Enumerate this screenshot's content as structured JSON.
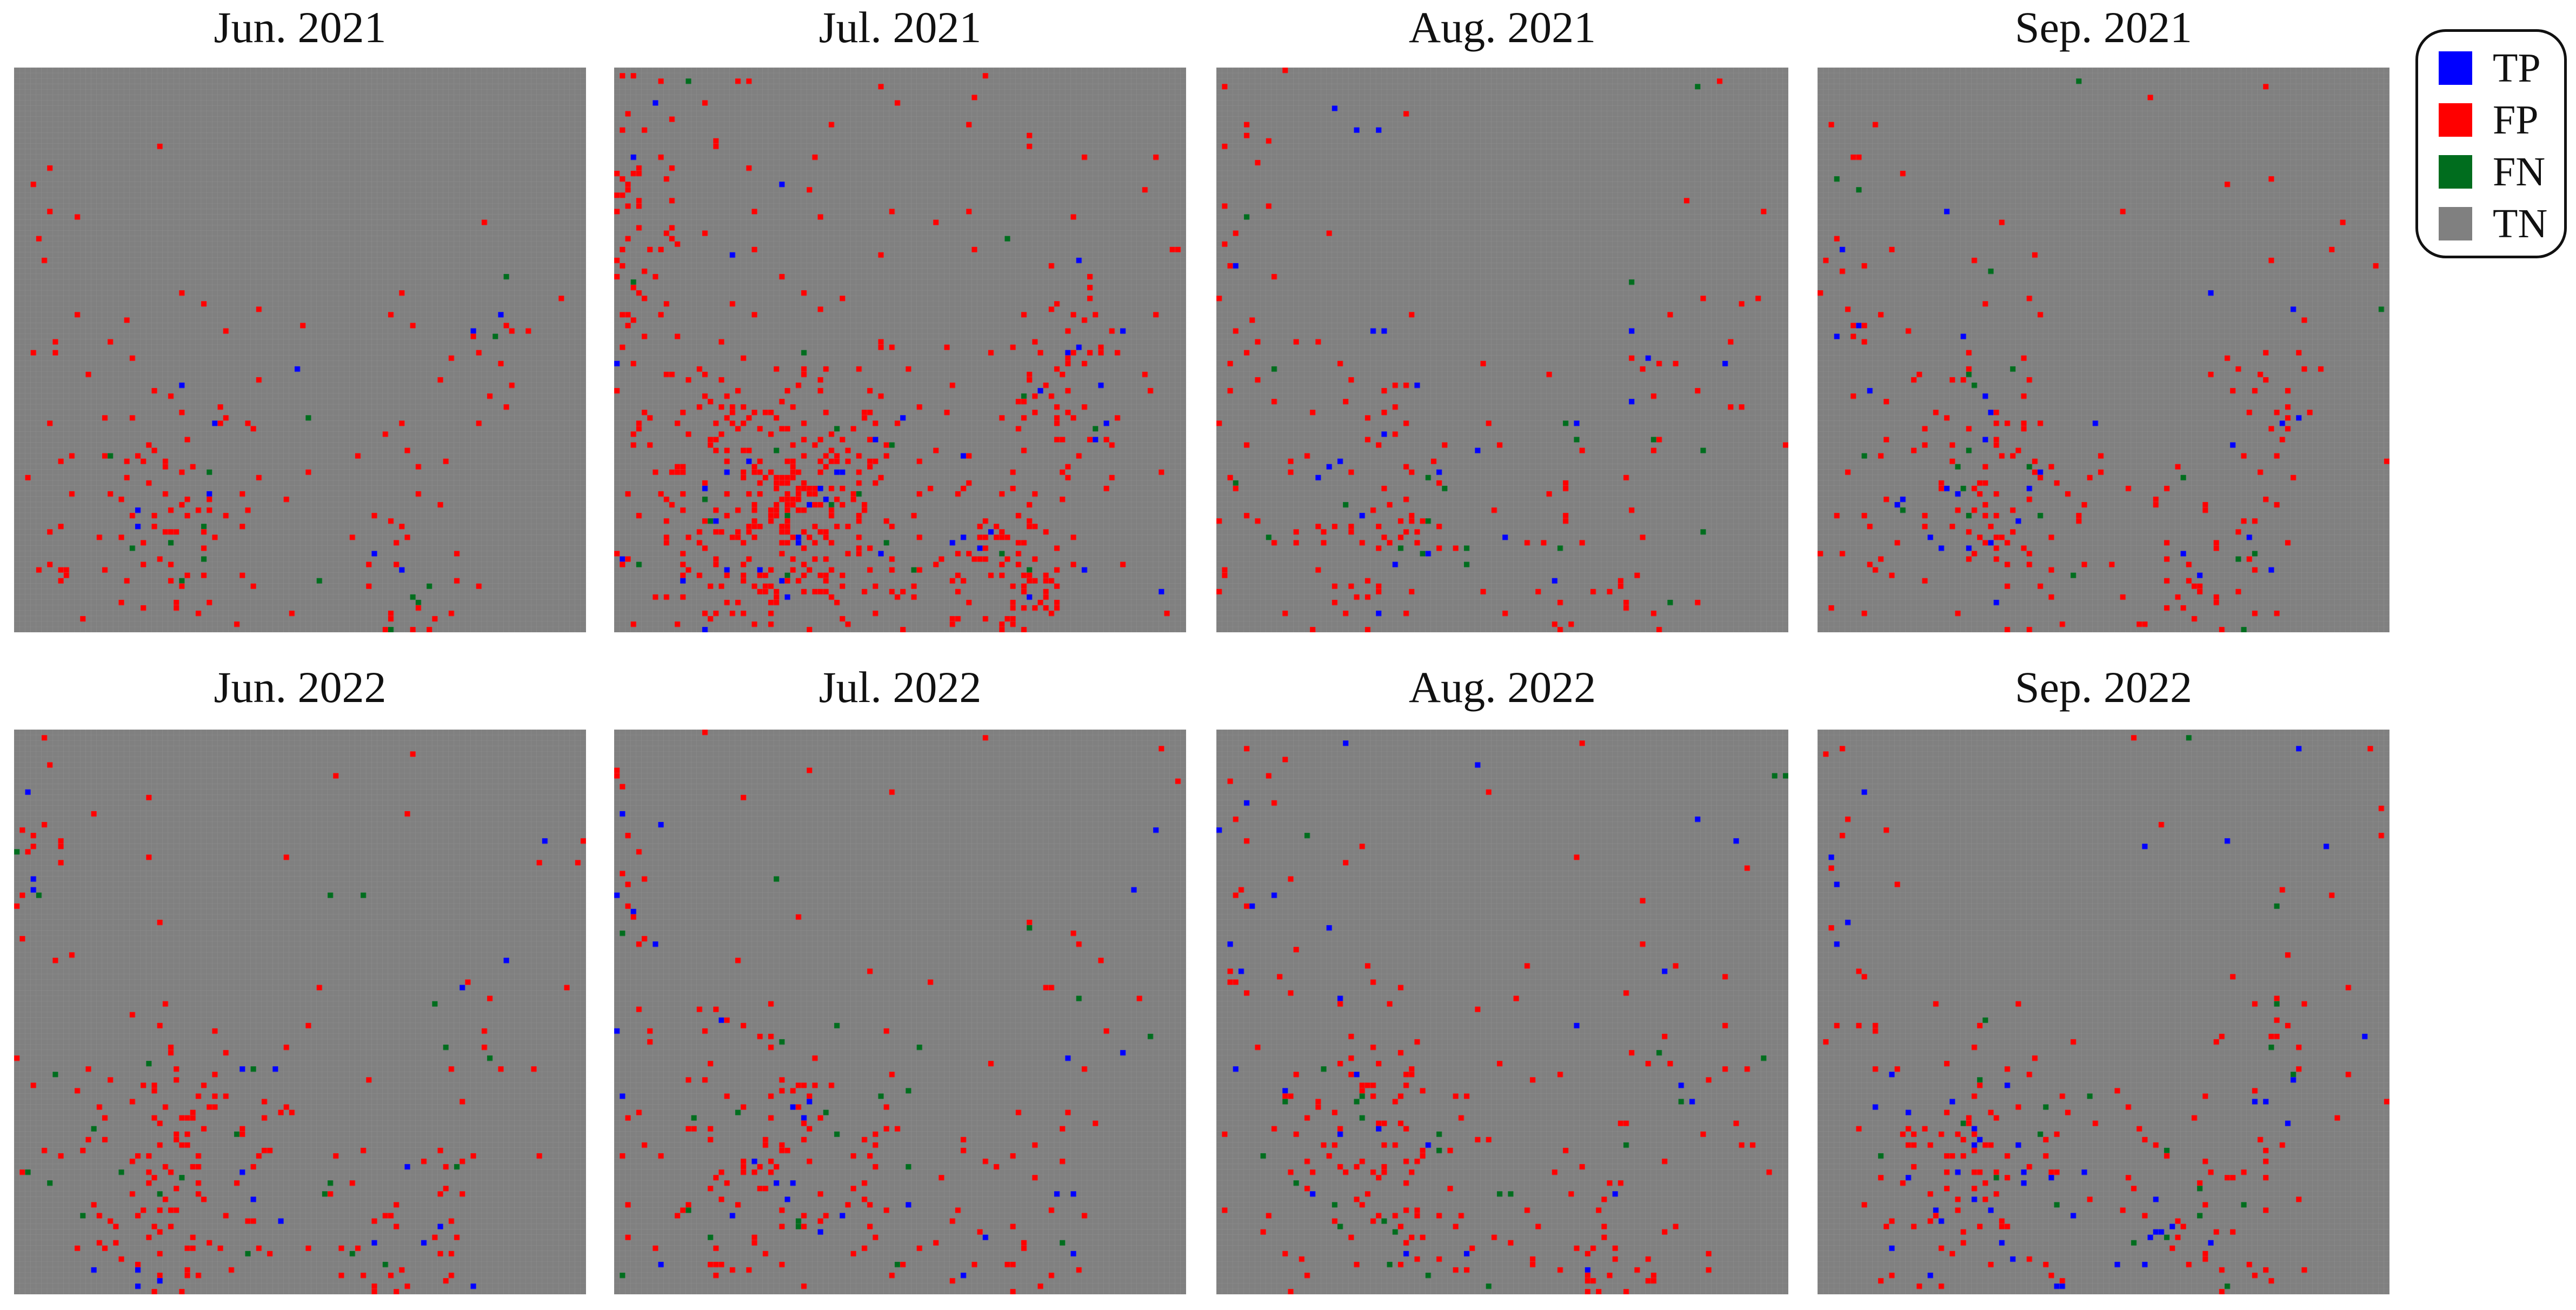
{
  "chart_data": {
    "type": "heatmap",
    "grid": "on",
    "legend_position": "top-right",
    "categories": [
      "TP",
      "FP",
      "FN",
      "TN"
    ],
    "colors": {
      "TP": "#0000ff",
      "FP": "#ff0000",
      "FN": "#006d1e",
      "TN": "#808080"
    },
    "panels": [
      {
        "title": "Jun. 2021",
        "fp_density": 0.045,
        "tp_density": 0.004,
        "fn_density": 0.004
      },
      {
        "title": "Jul. 2021",
        "fp_density": 0.16,
        "tp_density": 0.01,
        "fn_density": 0.007
      },
      {
        "title": "Aug. 2021",
        "fp_density": 0.05,
        "tp_density": 0.007,
        "fn_density": 0.006
      },
      {
        "title": "Sep. 2021",
        "fp_density": 0.06,
        "tp_density": 0.008,
        "fn_density": 0.007
      },
      {
        "title": "Jun. 2022",
        "fp_density": 0.06,
        "tp_density": 0.006,
        "fn_density": 0.005
      },
      {
        "title": "Jul. 2022",
        "fp_density": 0.055,
        "tp_density": 0.007,
        "fn_density": 0.006
      },
      {
        "title": "Aug. 2022",
        "fp_density": 0.055,
        "tp_density": 0.009,
        "fn_density": 0.008
      },
      {
        "title": "Sep. 2022",
        "fp_density": 0.055,
        "tp_density": 0.012,
        "fn_density": 0.009
      }
    ]
  },
  "legend": {
    "items": [
      {
        "label": "TP",
        "color": "#0000ff"
      },
      {
        "label": "FP",
        "color": "#ff0000"
      },
      {
        "label": "FN",
        "color": "#006d1e"
      },
      {
        "label": "TN",
        "color": "#808080"
      }
    ]
  }
}
